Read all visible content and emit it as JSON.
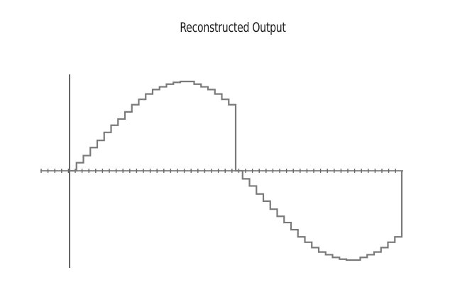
{
  "title": "Reconstructed Output",
  "colors": {
    "signal": "#7a7a7a",
    "axis": "#666666",
    "background": "#ffffff"
  },
  "chart_data": {
    "type": "line",
    "style": "step",
    "title": "Reconstructed Output",
    "xlabel": "",
    "ylabel": "",
    "grid": false,
    "sample_count": 48,
    "values": [
      0,
      0.09,
      0.17,
      0.26,
      0.34,
      0.43,
      0.51,
      0.58,
      0.66,
      0.74,
      0.8,
      0.86,
      0.91,
      0.94,
      0.97,
      0.99,
      1.0,
      1.0,
      0.97,
      0.94,
      0.91,
      0.86,
      0.8,
      0.74,
      0,
      -0.09,
      -0.17,
      -0.26,
      -0.34,
      -0.43,
      -0.51,
      -0.58,
      -0.66,
      -0.74,
      -0.8,
      -0.86,
      -0.91,
      -0.94,
      -0.97,
      -0.99,
      -1.0,
      -1.0,
      -0.97,
      -0.94,
      -0.91,
      -0.86,
      -0.8,
      -0.74
    ]
  }
}
